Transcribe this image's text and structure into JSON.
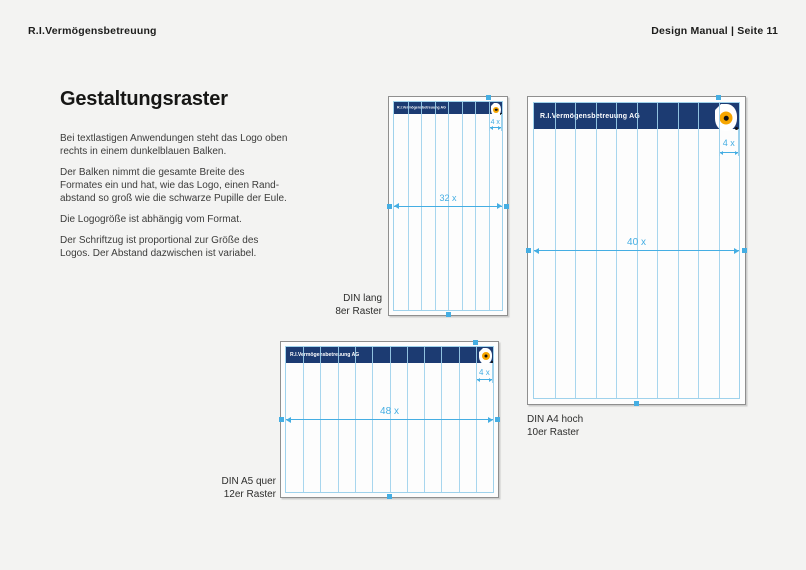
{
  "page": {
    "header_left": "R.I.Vermögensbetreuung",
    "header_right": "Design Manual | Seite 11"
  },
  "content": {
    "title": "Gestaltungsraster",
    "paragraphs": [
      "Bei textlastigen Anwendungen steht das Logo oben\nrechts in einem dunkelblauen Balken.",
      "Der Balken nimmt die gesamte Breite des\nFormates ein und hat, wie das Logo, einen Rand-\nabstand so groß wie die schwarze Pupille der Eule.",
      "Die Logogröße ist abhängig vom Format.",
      "Der Schriftzug ist proportional zur Größe des\nLogos. Der Abstand dazwischen ist variabel."
    ]
  },
  "colors": {
    "navy": "#1c3b72",
    "grid_blue": "#9fd2ec",
    "measure_blue": "#45aee3",
    "owl_orange": "#f7a600",
    "page_bg": "#f3f3f2",
    "frame_border": "#8f8f8f"
  },
  "diagrams": [
    {
      "id": "din-lang",
      "bar_text": "R.I.Vermögensbetreuung AG",
      "columns": 8,
      "width_label": "32 x",
      "logo_width_label": "4 x",
      "caption_line1": "DIN lang",
      "caption_line2": "8er Raster"
    },
    {
      "id": "din-a4-hoch",
      "bar_text": "R.I.Vermögensbetreuung AG",
      "columns": 10,
      "width_label": "40 x",
      "logo_width_label": "4 x",
      "caption_line1": "DIN A4 hoch",
      "caption_line2": "10er Raster"
    },
    {
      "id": "din-a5-quer",
      "bar_text": "R.I.Vermögensbetreuung AG",
      "columns": 12,
      "width_label": "48 x",
      "logo_width_label": "4 x",
      "caption_line1": "DIN A5 quer",
      "caption_line2": "12er Raster"
    }
  ]
}
